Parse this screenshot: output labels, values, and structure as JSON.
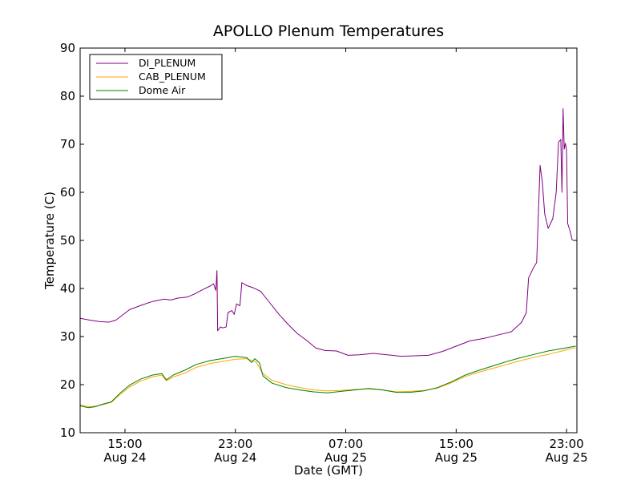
{
  "chart_data": {
    "type": "line",
    "title": "APOLLO Plenum Temperatures",
    "xlabel": "Date (GMT)",
    "ylabel": "Temperature (C)",
    "ylim": [
      10,
      90
    ],
    "xlim": [
      "2012-08-24 11:45",
      "2012-08-25 23:45"
    ],
    "yticks": [
      10,
      20,
      30,
      40,
      50,
      60,
      70,
      80,
      90
    ],
    "xticks": [
      {
        "time": "2012-08-24 15:00",
        "line1": "15:00",
        "line2": "Aug 24"
      },
      {
        "time": "2012-08-24 23:00",
        "line1": "23:00",
        "line2": "Aug 24"
      },
      {
        "time": "2012-08-25 07:00",
        "line1": "07:00",
        "line2": "Aug 25"
      },
      {
        "time": "2012-08-25 15:00",
        "line1": "15:00",
        "line2": "Aug 25"
      },
      {
        "time": "2012-08-25 23:00",
        "line1": "23:00",
        "line2": "Aug 25"
      }
    ],
    "grid": false,
    "legend_position": "top-left",
    "series": [
      {
        "name": "DI_PLENUM",
        "color": "#800080",
        "points": [
          [
            "2012-08-24 11:45",
            33.8
          ],
          [
            "2012-08-24 12:30",
            33.4
          ],
          [
            "2012-08-24 13:10",
            33.1
          ],
          [
            "2012-08-24 13:50",
            33.0
          ],
          [
            "2012-08-24 14:20",
            33.4
          ],
          [
            "2012-08-24 14:50",
            34.5
          ],
          [
            "2012-08-24 15:20",
            35.6
          ],
          [
            "2012-08-24 16:10",
            36.5
          ],
          [
            "2012-08-24 17:00",
            37.3
          ],
          [
            "2012-08-24 17:50",
            37.8
          ],
          [
            "2012-08-24 18:20",
            37.6
          ],
          [
            "2012-08-24 18:50",
            38.0
          ],
          [
            "2012-08-24 19:30",
            38.2
          ],
          [
            "2012-08-24 20:00",
            38.8
          ],
          [
            "2012-08-24 20:40",
            39.8
          ],
          [
            "2012-08-24 21:10",
            40.5
          ],
          [
            "2012-08-24 21:25",
            41.0
          ],
          [
            "2012-08-24 21:35",
            39.6
          ],
          [
            "2012-08-24 21:40",
            43.7
          ],
          [
            "2012-08-24 21:43",
            31.2
          ],
          [
            "2012-08-24 21:55",
            32.0
          ],
          [
            "2012-08-24 22:05",
            31.8
          ],
          [
            "2012-08-24 22:20",
            32.0
          ],
          [
            "2012-08-24 22:28",
            35.0
          ],
          [
            "2012-08-24 22:45",
            35.4
          ],
          [
            "2012-08-24 22:55",
            34.6
          ],
          [
            "2012-08-24 23:05",
            36.8
          ],
          [
            "2012-08-24 23:20",
            36.4
          ],
          [
            "2012-08-24 23:28",
            41.2
          ],
          [
            "2012-08-24 23:50",
            40.6
          ],
          [
            "2012-08-25 00:20",
            40.1
          ],
          [
            "2012-08-25 00:50",
            39.4
          ],
          [
            "2012-08-25 01:30",
            37.0
          ],
          [
            "2012-08-25 02:10",
            34.6
          ],
          [
            "2012-08-25 02:50",
            32.5
          ],
          [
            "2012-08-25 03:30",
            30.6
          ],
          [
            "2012-08-25 04:10",
            29.2
          ],
          [
            "2012-08-25 04:50",
            27.6
          ],
          [
            "2012-08-25 05:30",
            27.1
          ],
          [
            "2012-08-25 06:20",
            27.0
          ],
          [
            "2012-08-25 07:10",
            26.1
          ],
          [
            "2012-08-25 08:00",
            26.2
          ],
          [
            "2012-08-25 09:00",
            26.5
          ],
          [
            "2012-08-25 10:00",
            26.2
          ],
          [
            "2012-08-25 11:00",
            25.9
          ],
          [
            "2012-08-25 12:00",
            26.0
          ],
          [
            "2012-08-25 13:00",
            26.1
          ],
          [
            "2012-08-25 14:00",
            26.9
          ],
          [
            "2012-08-25 15:00",
            28.0
          ],
          [
            "2012-08-25 16:00",
            29.1
          ],
          [
            "2012-08-25 17:00",
            29.6
          ],
          [
            "2012-08-25 18:00",
            30.3
          ],
          [
            "2012-08-25 19:00",
            31.0
          ],
          [
            "2012-08-25 19:45",
            33.0
          ],
          [
            "2012-08-25 20:05",
            35.0
          ],
          [
            "2012-08-25 20:15",
            42.2
          ],
          [
            "2012-08-25 20:35",
            44.2
          ],
          [
            "2012-08-25 20:50",
            45.4
          ],
          [
            "2012-08-25 21:05",
            65.6
          ],
          [
            "2012-08-25 21:15",
            62.0
          ],
          [
            "2012-08-25 21:25",
            55.5
          ],
          [
            "2012-08-25 21:40",
            52.5
          ],
          [
            "2012-08-25 22:00",
            54.5
          ],
          [
            "2012-08-25 22:15",
            60.0
          ],
          [
            "2012-08-25 22:25",
            70.4
          ],
          [
            "2012-08-25 22:35",
            71.0
          ],
          [
            "2012-08-25 22:40",
            60.0
          ],
          [
            "2012-08-25 22:45",
            77.4
          ],
          [
            "2012-08-25 22:50",
            69.0
          ],
          [
            "2012-08-25 22:55",
            70.2
          ],
          [
            "2012-08-25 23:00",
            68.8
          ],
          [
            "2012-08-25 23:05",
            53.5
          ],
          [
            "2012-08-25 23:15",
            52.0
          ],
          [
            "2012-08-25 23:25",
            50.0
          ]
        ]
      },
      {
        "name": "CAB_PLENUM",
        "color": "#ffa500",
        "points": [
          [
            "2012-08-24 11:45",
            15.8
          ],
          [
            "2012-08-24 12:20",
            15.4
          ],
          [
            "2012-08-24 12:50",
            15.5
          ],
          [
            "2012-08-24 13:20",
            15.8
          ],
          [
            "2012-08-24 14:00",
            16.3
          ],
          [
            "2012-08-24 14:40",
            18.0
          ],
          [
            "2012-08-24 15:20",
            19.5
          ],
          [
            "2012-08-24 16:10",
            20.8
          ],
          [
            "2012-08-24 17:00",
            21.6
          ],
          [
            "2012-08-24 17:40",
            22.0
          ],
          [
            "2012-08-24 18:00",
            20.8
          ],
          [
            "2012-08-24 18:30",
            21.6
          ],
          [
            "2012-08-24 19:20",
            22.4
          ],
          [
            "2012-08-24 20:10",
            23.6
          ],
          [
            "2012-08-24 21:10",
            24.4
          ],
          [
            "2012-08-24 22:00",
            24.8
          ],
          [
            "2012-08-24 23:00",
            25.3
          ],
          [
            "2012-08-24 23:50",
            25.4
          ],
          [
            "2012-08-25 00:30",
            24.7
          ],
          [
            "2012-08-25 01:00",
            22.3
          ],
          [
            "2012-08-25 01:40",
            20.9
          ],
          [
            "2012-08-25 02:40",
            20.0
          ],
          [
            "2012-08-25 03:40",
            19.4
          ],
          [
            "2012-08-25 04:40",
            18.9
          ],
          [
            "2012-08-25 05:40",
            18.7
          ],
          [
            "2012-08-25 06:40",
            18.8
          ],
          [
            "2012-08-25 07:40",
            19.0
          ],
          [
            "2012-08-25 08:40",
            19.1
          ],
          [
            "2012-08-25 09:40",
            18.9
          ],
          [
            "2012-08-25 10:40",
            18.5
          ],
          [
            "2012-08-25 11:40",
            18.6
          ],
          [
            "2012-08-25 12:40",
            18.8
          ],
          [
            "2012-08-25 13:40",
            19.3
          ],
          [
            "2012-08-25 14:40",
            20.4
          ],
          [
            "2012-08-25 15:40",
            21.7
          ],
          [
            "2012-08-25 16:40",
            22.6
          ],
          [
            "2012-08-25 17:40",
            23.4
          ],
          [
            "2012-08-25 18:40",
            24.2
          ],
          [
            "2012-08-25 19:40",
            25.0
          ],
          [
            "2012-08-25 20:40",
            25.7
          ],
          [
            "2012-08-25 21:40",
            26.3
          ],
          [
            "2012-08-25 22:40",
            27.0
          ],
          [
            "2012-08-25 23:40",
            27.7
          ]
        ]
      },
      {
        "name": "Dome Air",
        "color": "#008000",
        "points": [
          [
            "2012-08-24 11:45",
            15.6
          ],
          [
            "2012-08-24 12:20",
            15.2
          ],
          [
            "2012-08-24 12:50",
            15.4
          ],
          [
            "2012-08-24 13:20",
            15.9
          ],
          [
            "2012-08-24 14:00",
            16.4
          ],
          [
            "2012-08-24 14:40",
            18.3
          ],
          [
            "2012-08-24 15:20",
            19.9
          ],
          [
            "2012-08-24 16:10",
            21.2
          ],
          [
            "2012-08-24 17:00",
            22.0
          ],
          [
            "2012-08-24 17:40",
            22.3
          ],
          [
            "2012-08-24 18:00",
            21.0
          ],
          [
            "2012-08-24 18:30",
            22.0
          ],
          [
            "2012-08-24 19:20",
            23.0
          ],
          [
            "2012-08-24 20:10",
            24.2
          ],
          [
            "2012-08-24 21:10",
            25.0
          ],
          [
            "2012-08-24 22:00",
            25.4
          ],
          [
            "2012-08-24 23:00",
            25.9
          ],
          [
            "2012-08-24 23:50",
            25.6
          ],
          [
            "2012-08-25 00:10",
            24.6
          ],
          [
            "2012-08-25 00:25",
            25.4
          ],
          [
            "2012-08-25 00:45",
            24.5
          ],
          [
            "2012-08-25 01:00",
            21.8
          ],
          [
            "2012-08-25 01:40",
            20.3
          ],
          [
            "2012-08-25 02:40",
            19.4
          ],
          [
            "2012-08-25 03:40",
            18.9
          ],
          [
            "2012-08-25 04:40",
            18.5
          ],
          [
            "2012-08-25 05:40",
            18.3
          ],
          [
            "2012-08-25 06:40",
            18.6
          ],
          [
            "2012-08-25 07:40",
            18.9
          ],
          [
            "2012-08-25 08:40",
            19.2
          ],
          [
            "2012-08-25 09:40",
            18.9
          ],
          [
            "2012-08-25 10:40",
            18.4
          ],
          [
            "2012-08-25 11:40",
            18.4
          ],
          [
            "2012-08-25 12:40",
            18.7
          ],
          [
            "2012-08-25 13:40",
            19.4
          ],
          [
            "2012-08-25 14:40",
            20.6
          ],
          [
            "2012-08-25 15:40",
            22.0
          ],
          [
            "2012-08-25 16:40",
            23.0
          ],
          [
            "2012-08-25 17:40",
            23.9
          ],
          [
            "2012-08-25 18:40",
            24.8
          ],
          [
            "2012-08-25 19:40",
            25.6
          ],
          [
            "2012-08-25 20:40",
            26.3
          ],
          [
            "2012-08-25 21:40",
            27.0
          ],
          [
            "2012-08-25 22:40",
            27.5
          ],
          [
            "2012-08-25 23:40",
            28.0
          ]
        ]
      }
    ]
  }
}
